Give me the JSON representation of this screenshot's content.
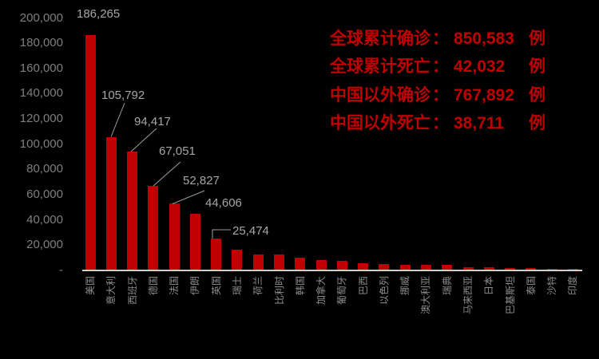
{
  "page": {
    "background_color": "#000000"
  },
  "chart_data": {
    "type": "bar",
    "title": "",
    "xlabel": "",
    "ylabel": "",
    "grid": false,
    "legend": false,
    "ylim": [
      0,
      200000
    ],
    "y_ticks": [
      "200,000",
      "180,000",
      "160,000",
      "140,000",
      "120,000",
      "100,000",
      "80,000",
      "60,000",
      "40,000",
      "20,000",
      "-"
    ],
    "categories": [
      "美国",
      "意大利",
      "西班牙",
      "德国",
      "法国",
      "伊朗",
      "英国",
      "瑞士",
      "荷兰",
      "比利时",
      "韩国",
      "加拿大",
      "葡萄牙",
      "巴西",
      "以色列",
      "挪威",
      "澳大利亚",
      "瑞典",
      "马来西亚",
      "日本",
      "巴基斯坦",
      "泰国",
      "沙特",
      "印度"
    ],
    "values": [
      186265,
      105792,
      94417,
      67051,
      52827,
      44606,
      25474,
      16605,
      12595,
      12775,
      9887,
      8527,
      7443,
      5717,
      5358,
      4641,
      4559,
      4435,
      2766,
      2384,
      2039,
      1771,
      1563,
      1397
    ],
    "value_labels_shown": [
      "186,265",
      "105,792",
      "94,417",
      "67,051",
      "52,827",
      "44,606",
      "25,474"
    ],
    "bar_color": "#c00000",
    "axis_line_color": "#cfcfcf",
    "y_tick_color": "#7f7f7f",
    "x_tick_color": "#8c8c8c",
    "data_label_color": "#a6a6a6",
    "leader_line_color": "#9e9e9e"
  },
  "annotations": {
    "text_color": "#c00000",
    "colon": "：",
    "unit": "例",
    "lines": [
      {
        "label": "全球累计确诊",
        "value": "850,583"
      },
      {
        "label": "全球累计死亡",
        "value": "42,032"
      },
      {
        "label": "中国以外确诊",
        "value": "767,892"
      },
      {
        "label": "中国以外死亡",
        "value": "38,711"
      }
    ]
  }
}
